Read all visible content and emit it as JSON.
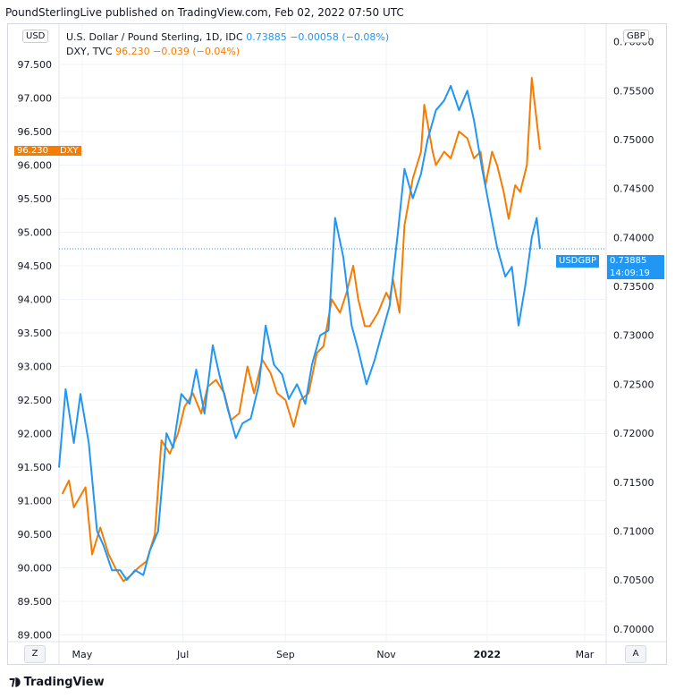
{
  "header": {
    "text": "PoundSterlingLive published on TradingView.com, Feb 02, 2022 07:50 UTC"
  },
  "legend": {
    "line1_prefix": "U.S. Dollar / Pound Sterling, 1D, IDC",
    "line1_value": "0.73885",
    "line1_change": "−0.00058 (−0.08%)",
    "line2_prefix": "DXY, TVC",
    "line2_value": "96.230",
    "line2_change": "−0.039 (−0.04%)"
  },
  "left_unit": "USD",
  "right_unit": "GBP",
  "tags": {
    "dxy_value": "96.230",
    "dxy_name": "DXY",
    "usdgbp_name": "USDGBP",
    "usdgbp_value": "0.73885",
    "usdgbp_countdown": "14:09:19"
  },
  "footer": {
    "brand": "TradingView",
    "left_button": "Z",
    "right_button": "A"
  },
  "colors": {
    "usdgbp": "#2196f3",
    "dxy": "#f57c00",
    "grid": "#f0f3fa",
    "axis_text": "#131722"
  },
  "chart_data": {
    "type": "line",
    "title": "",
    "x_tick_labels": [
      "May",
      "Jul",
      "Sep",
      "Nov",
      "2022",
      "Mar"
    ],
    "x_tick_dates": [
      "2021-05-01",
      "2021-07-01",
      "2021-09-01",
      "2021-11-01",
      "2022-01-01",
      "2022-03-01"
    ],
    "x_range": [
      "2021-04-17",
      "2022-03-14"
    ],
    "left_axis": {
      "label": "USD",
      "range": [
        88.9,
        98.1
      ],
      "ticks": [
        89.0,
        89.5,
        90.0,
        90.5,
        91.0,
        91.5,
        92.0,
        92.5,
        93.0,
        93.5,
        94.0,
        94.5,
        95.0,
        95.5,
        96.0,
        96.5,
        97.0,
        97.5
      ],
      "tick_labels": [
        "89.000",
        "89.500",
        "90.000",
        "90.500",
        "91.000",
        "91.500",
        "92.000",
        "92.500",
        "93.000",
        "93.500",
        "94.000",
        "94.500",
        "95.000",
        "95.500",
        "96.000",
        "96.500",
        "97.000",
        "97.500"
      ]
    },
    "right_axis": {
      "label": "GBP",
      "range": [
        0.6987,
        0.7618
      ],
      "ticks": [
        0.7,
        0.705,
        0.71,
        0.715,
        0.72,
        0.725,
        0.73,
        0.735,
        0.74,
        0.745,
        0.75,
        0.755,
        0.76
      ],
      "tick_labels": [
        "0.70000",
        "0.70500",
        "0.71000",
        "0.71500",
        "0.72000",
        "0.72500",
        "0.73000",
        "0.73500",
        "0.74000",
        "0.74500",
        "0.75000",
        "0.75500",
        "0.76000"
      ]
    },
    "grid": true,
    "legend_position": "top-left",
    "series": [
      {
        "name": "DXY",
        "axis": "left",
        "points": [
          [
            "2021-04-19",
            91.1
          ],
          [
            "2021-04-23",
            91.3
          ],
          [
            "2021-04-26",
            90.9
          ],
          [
            "2021-05-03",
            91.2
          ],
          [
            "2021-05-07",
            90.2
          ],
          [
            "2021-05-12",
            90.6
          ],
          [
            "2021-05-17",
            90.2
          ],
          [
            "2021-05-21",
            90.0
          ],
          [
            "2021-05-26",
            89.8
          ],
          [
            "2021-05-31",
            89.9
          ],
          [
            "2021-06-04",
            90.0
          ],
          [
            "2021-06-09",
            90.1
          ],
          [
            "2021-06-14",
            90.5
          ],
          [
            "2021-06-18",
            91.9
          ],
          [
            "2021-06-23",
            91.7
          ],
          [
            "2021-06-28",
            92.0
          ],
          [
            "2021-07-02",
            92.4
          ],
          [
            "2021-07-07",
            92.6
          ],
          [
            "2021-07-12",
            92.3
          ],
          [
            "2021-07-16",
            92.7
          ],
          [
            "2021-07-21",
            92.8
          ],
          [
            "2021-07-26",
            92.6
          ],
          [
            "2021-07-30",
            92.2
          ],
          [
            "2021-08-04",
            92.3
          ],
          [
            "2021-08-09",
            93.0
          ],
          [
            "2021-08-13",
            92.6
          ],
          [
            "2021-08-18",
            93.1
          ],
          [
            "2021-08-23",
            92.9
          ],
          [
            "2021-08-27",
            92.6
          ],
          [
            "2021-09-01",
            92.5
          ],
          [
            "2021-09-06",
            92.1
          ],
          [
            "2021-09-10",
            92.5
          ],
          [
            "2021-09-15",
            92.6
          ],
          [
            "2021-09-20",
            93.2
          ],
          [
            "2021-09-24",
            93.3
          ],
          [
            "2021-09-29",
            94.0
          ],
          [
            "2021-10-04",
            93.8
          ],
          [
            "2021-10-08",
            94.1
          ],
          [
            "2021-10-12",
            94.5
          ],
          [
            "2021-10-15",
            94.0
          ],
          [
            "2021-10-19",
            93.6
          ],
          [
            "2021-10-22",
            93.6
          ],
          [
            "2021-10-27",
            93.8
          ],
          [
            "2021-11-01",
            94.1
          ],
          [
            "2021-11-03",
            94.0
          ],
          [
            "2021-11-05",
            94.3
          ],
          [
            "2021-11-09",
            93.8
          ],
          [
            "2021-11-12",
            95.1
          ],
          [
            "2021-11-17",
            95.8
          ],
          [
            "2021-11-22",
            96.2
          ],
          [
            "2021-11-24",
            96.9
          ],
          [
            "2021-11-29",
            96.2
          ],
          [
            "2021-12-01",
            96.0
          ],
          [
            "2021-12-06",
            96.2
          ],
          [
            "2021-12-10",
            96.1
          ],
          [
            "2021-12-15",
            96.5
          ],
          [
            "2021-12-20",
            96.4
          ],
          [
            "2021-12-24",
            96.1
          ],
          [
            "2021-12-28",
            96.2
          ],
          [
            "2021-12-31",
            95.7
          ],
          [
            "2022-01-04",
            96.2
          ],
          [
            "2022-01-07",
            96.0
          ],
          [
            "2022-01-11",
            95.6
          ],
          [
            "2022-01-14",
            95.2
          ],
          [
            "2022-01-18",
            95.7
          ],
          [
            "2022-01-21",
            95.6
          ],
          [
            "2022-01-25",
            96.0
          ],
          [
            "2022-01-28",
            97.3
          ],
          [
            "2022-02-02",
            96.23
          ]
        ]
      },
      {
        "name": "USDGBP",
        "axis": "right",
        "points": [
          [
            "2021-04-17",
            0.7165
          ],
          [
            "2021-04-21",
            0.7245
          ],
          [
            "2021-04-26",
            0.719
          ],
          [
            "2021-04-30",
            0.724
          ],
          [
            "2021-05-05",
            0.719
          ],
          [
            "2021-05-10",
            0.71
          ],
          [
            "2021-05-14",
            0.7085
          ],
          [
            "2021-05-19",
            0.706
          ],
          [
            "2021-05-24",
            0.706
          ],
          [
            "2021-05-28",
            0.705
          ],
          [
            "2021-06-02",
            0.706
          ],
          [
            "2021-06-07",
            0.7055
          ],
          [
            "2021-06-11",
            0.708
          ],
          [
            "2021-06-16",
            0.71
          ],
          [
            "2021-06-21",
            0.72
          ],
          [
            "2021-06-25",
            0.7185
          ],
          [
            "2021-06-30",
            0.724
          ],
          [
            "2021-07-05",
            0.723
          ],
          [
            "2021-07-09",
            0.7265
          ],
          [
            "2021-07-14",
            0.722
          ],
          [
            "2021-07-19",
            0.729
          ],
          [
            "2021-07-23",
            0.726
          ],
          [
            "2021-07-28",
            0.7225
          ],
          [
            "2021-08-02",
            0.7195
          ],
          [
            "2021-08-06",
            0.721
          ],
          [
            "2021-08-11",
            0.7215
          ],
          [
            "2021-08-16",
            0.725
          ],
          [
            "2021-08-20",
            0.731
          ],
          [
            "2021-08-25",
            0.727
          ],
          [
            "2021-08-30",
            0.726
          ],
          [
            "2021-09-03",
            0.7235
          ],
          [
            "2021-09-08",
            0.725
          ],
          [
            "2021-09-13",
            0.723
          ],
          [
            "2021-09-17",
            0.727
          ],
          [
            "2021-09-22",
            0.73
          ],
          [
            "2021-09-27",
            0.7305
          ],
          [
            "2021-10-01",
            0.742
          ],
          [
            "2021-10-06",
            0.738
          ],
          [
            "2021-10-11",
            0.731
          ],
          [
            "2021-10-15",
            0.7285
          ],
          [
            "2021-10-20",
            0.725
          ],
          [
            "2021-10-25",
            0.7275
          ],
          [
            "2021-10-29",
            0.73
          ],
          [
            "2021-11-03",
            0.733
          ],
          [
            "2021-11-08",
            0.7405
          ],
          [
            "2021-11-12",
            0.747
          ],
          [
            "2021-11-17",
            0.744
          ],
          [
            "2021-11-22",
            0.7465
          ],
          [
            "2021-11-26",
            0.75
          ],
          [
            "2021-12-01",
            0.753
          ],
          [
            "2021-12-06",
            0.754
          ],
          [
            "2021-12-10",
            0.7555
          ],
          [
            "2021-12-15",
            0.753
          ],
          [
            "2021-12-20",
            0.755
          ],
          [
            "2021-12-24",
            0.752
          ],
          [
            "2021-12-29",
            0.747
          ],
          [
            "2022-01-03",
            0.7425
          ],
          [
            "2022-01-07",
            0.739
          ],
          [
            "2022-01-12",
            0.736
          ],
          [
            "2022-01-16",
            0.737
          ],
          [
            "2022-01-20",
            0.731
          ],
          [
            "2022-01-24",
            0.735
          ],
          [
            "2022-01-28",
            0.74
          ],
          [
            "2022-01-31",
            0.742
          ],
          [
            "2022-02-02",
            0.73885
          ]
        ]
      }
    ],
    "last_values": {
      "DXY": 96.23,
      "USDGBP": 0.73885
    }
  }
}
